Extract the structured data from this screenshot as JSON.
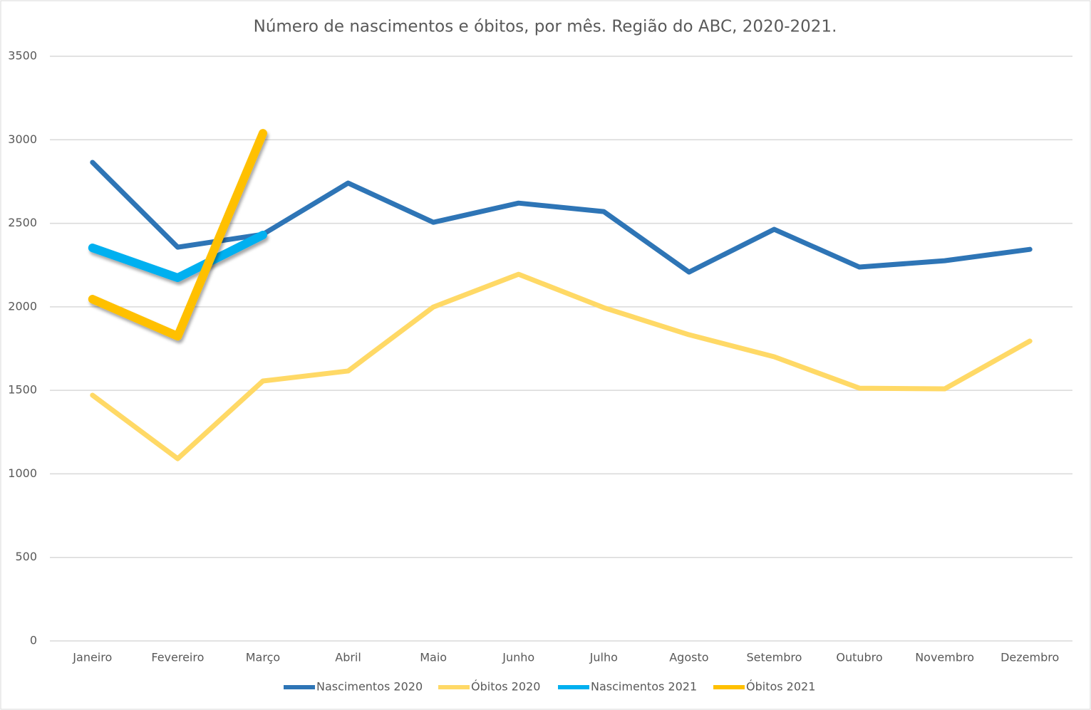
{
  "chart_data": {
    "type": "line",
    "title": "Número de nascimentos e óbitos, por mês. Região do ABC, 2020-2021.",
    "categories": [
      "Janeiro",
      "Fevereiro",
      "Março",
      "Abril",
      "Maio",
      "Junho",
      "Julho",
      "Agosto",
      "Setembro",
      "Outubro",
      "Novembro",
      "Dezembro"
    ],
    "series": [
      {
        "name": "Nascimentos 2020",
        "color": "#2e75b6",
        "values": [
          2865,
          2357,
          2434,
          2741,
          2506,
          2621,
          2570,
          2208,
          2464,
          2238,
          2276,
          2344
        ]
      },
      {
        "name": "Óbitos 2020",
        "color": "#ffd966",
        "values": [
          1471,
          1091,
          1556,
          1616,
          1999,
          2195,
          1995,
          1833,
          1701,
          1513,
          1509,
          1795
        ]
      },
      {
        "name": "Nascimentos 2021",
        "color": "#00b0f0",
        "values": [
          2353,
          2174,
          2430,
          null,
          null,
          null,
          null,
          null,
          null,
          null,
          null,
          null
        ]
      },
      {
        "name": "Óbitos 2021",
        "color": "#ffc000",
        "values": [
          2046,
          1824,
          3039,
          null,
          null,
          null,
          null,
          null,
          null,
          null,
          null,
          null
        ]
      }
    ],
    "ylim": [
      0,
      3500
    ],
    "yticks": [
      0,
      500,
      1000,
      1500,
      2000,
      2500,
      3000,
      3500
    ],
    "grid": true,
    "legend": "bottom"
  }
}
